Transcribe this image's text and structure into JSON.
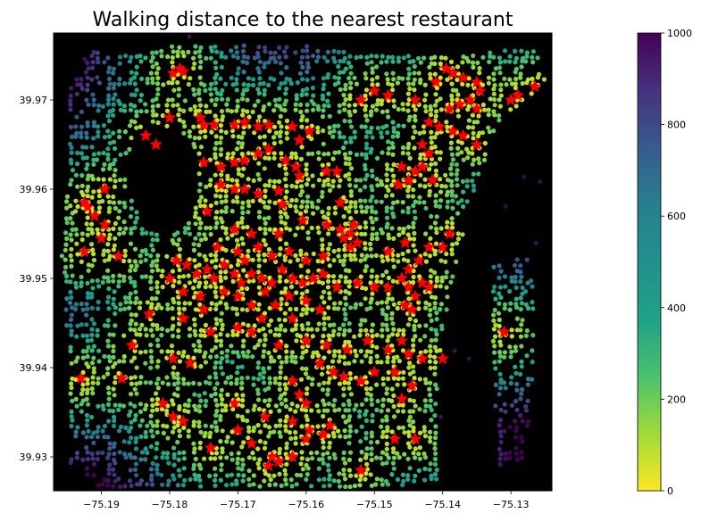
{
  "chart_data": {
    "type": "scatter",
    "title": "Walking distance to the nearest restaurant",
    "xlabel": "",
    "ylabel": "",
    "xlim": [
      -75.197,
      -75.124
    ],
    "ylim": [
      39.9262,
      39.9775
    ],
    "x_ticks": [
      -75.19,
      -75.18,
      -75.17,
      -75.16,
      -75.15,
      -75.14,
      -75.13
    ],
    "x_tick_labels": [
      "−75.19",
      "−75.18",
      "−75.17",
      "−75.16",
      "−75.15",
      "−75.14",
      "−75.13"
    ],
    "y_ticks": [
      39.93,
      39.94,
      39.95,
      39.96,
      39.97
    ],
    "y_tick_labels": [
      "39.93",
      "39.94",
      "39.95",
      "39.96",
      "39.97"
    ],
    "background": "#000000",
    "grid": false,
    "colormap": "viridis_r",
    "colorbar": {
      "range": [
        0,
        1000
      ],
      "ticks": [
        0,
        200,
        400,
        600,
        800,
        1000
      ],
      "tick_labels": [
        "0",
        "200",
        "400",
        "600",
        "800",
        "1000"
      ]
    },
    "series": [
      {
        "kind": "network_nodes",
        "description_of_values": "walking distance colored via colormap",
        "color_by": "distance"
      },
      {
        "kind": "restaurants",
        "marker": "star",
        "color": "#ff0000",
        "points": [
          [
            -75.1785,
            39.9735
          ],
          [
            -75.1795,
            39.973
          ],
          [
            -75.178,
            39.9732
          ],
          [
            -75.18,
            39.968
          ],
          [
            -75.1755,
            39.968
          ],
          [
            -75.175,
            39.9672
          ],
          [
            -75.1735,
            39.9672
          ],
          [
            -75.1705,
            39.9672
          ],
          [
            -75.169,
            39.9675
          ],
          [
            -75.167,
            39.967
          ],
          [
            -75.1655,
            39.9672
          ],
          [
            -75.162,
            39.967
          ],
          [
            -75.1595,
            39.9665
          ],
          [
            -75.161,
            39.9655
          ],
          [
            -75.1835,
            39.966
          ],
          [
            -75.182,
            39.965
          ],
          [
            -75.175,
            39.963
          ],
          [
            -75.1725,
            39.9625
          ],
          [
            -75.1705,
            39.963
          ],
          [
            -75.169,
            39.9632
          ],
          [
            -75.167,
            39.964
          ],
          [
            -75.1655,
            39.9645
          ],
          [
            -75.163,
            39.9632
          ],
          [
            -75.1615,
            39.9625
          ],
          [
            -75.161,
            39.9615
          ],
          [
            -75.157,
            39.962
          ],
          [
            -75.1555,
            39.962
          ],
          [
            -75.1725,
            39.9605
          ],
          [
            -75.1705,
            39.96
          ],
          [
            -75.169,
            39.96
          ],
          [
            -75.167,
            39.9595
          ],
          [
            -75.164,
            39.9598
          ],
          [
            -75.1635,
            39.9583
          ],
          [
            -75.155,
            39.9585
          ],
          [
            -75.1925,
            39.9585
          ],
          [
            -75.192,
            39.958
          ],
          [
            -75.191,
            39.957
          ],
          [
            -75.1895,
            39.96
          ],
          [
            -75.1895,
            39.956
          ],
          [
            -75.19,
            39.9545
          ],
          [
            -75.1925,
            39.953
          ],
          [
            -75.1875,
            39.9525
          ],
          [
            -75.1745,
            39.9575
          ],
          [
            -75.1705,
            39.9555
          ],
          [
            -75.168,
            39.955
          ],
          [
            -75.164,
            39.955
          ],
          [
            -75.1605,
            39.9565
          ],
          [
            -75.157,
            39.956
          ],
          [
            -75.155,
            39.9555
          ],
          [
            -75.1545,
            39.9545
          ],
          [
            -75.1535,
            39.955
          ],
          [
            -75.153,
            39.956
          ],
          [
            -75.1525,
            39.954
          ],
          [
            -75.1535,
            39.9535
          ],
          [
            -75.173,
            39.9535
          ],
          [
            -75.17,
            39.953
          ],
          [
            -75.169,
            39.952
          ],
          [
            -75.167,
            39.9535
          ],
          [
            -75.165,
            39.9525
          ],
          [
            -75.1625,
            39.953
          ],
          [
            -75.16,
            39.952
          ],
          [
            -75.1575,
            39.9525
          ],
          [
            -75.179,
            39.952
          ],
          [
            -75.1775,
            39.9515
          ],
          [
            -75.176,
            39.9505
          ],
          [
            -75.1745,
            39.951
          ],
          [
            -75.1735,
            39.95
          ],
          [
            -75.172,
            39.9515
          ],
          [
            -75.1705,
            39.9505
          ],
          [
            -75.1695,
            39.9495
          ],
          [
            -75.168,
            39.9505
          ],
          [
            -75.1665,
            39.95
          ],
          [
            -75.165,
            39.9495
          ],
          [
            -75.1635,
            39.951
          ],
          [
            -75.162,
            39.95
          ],
          [
            -75.1605,
            39.9495
          ],
          [
            -75.159,
            39.95
          ],
          [
            -75.1575,
            39.9505
          ],
          [
            -75.1555,
            39.949
          ],
          [
            -75.1525,
            39.9495
          ],
          [
            -75.18,
            39.95
          ],
          [
            -75.178,
            39.9485
          ],
          [
            -75.1755,
            39.948
          ],
          [
            -75.172,
            39.9485
          ],
          [
            -75.17,
            39.948
          ],
          [
            -75.168,
            39.947
          ],
          [
            -75.166,
            39.9485
          ],
          [
            -75.1645,
            39.947
          ],
          [
            -75.1625,
            39.948
          ],
          [
            -75.16,
            39.9475
          ],
          [
            -75.158,
            39.9465
          ],
          [
            -75.183,
            39.946
          ],
          [
            -75.178,
            39.9455
          ],
          [
            -75.175,
            39.9465
          ],
          [
            -75.1665,
            39.9455
          ],
          [
            -75.162,
            39.9455
          ],
          [
            -75.15,
            39.949
          ],
          [
            -75.148,
            39.949
          ],
          [
            -75.146,
            39.95
          ],
          [
            -75.145,
            39.949
          ],
          [
            -75.144,
            39.948
          ],
          [
            -75.143,
            39.9495
          ],
          [
            -75.142,
            39.949
          ],
          [
            -75.145,
            39.951
          ],
          [
            -75.1435,
            39.952
          ],
          [
            -75.142,
            39.9535
          ],
          [
            -75.1455,
            39.954
          ],
          [
            -75.14,
            39.9535
          ],
          [
            -75.139,
            39.955
          ],
          [
            -75.148,
            39.953
          ],
          [
            -75.1455,
            39.947
          ],
          [
            -75.1445,
            39.9465
          ],
          [
            -75.174,
            39.944
          ],
          [
            -75.17,
            39.9445
          ],
          [
            -75.168,
            39.944
          ],
          [
            -75.164,
            39.9425
          ],
          [
            -75.16,
            39.943
          ],
          [
            -75.157,
            39.9425
          ],
          [
            -75.154,
            39.942
          ],
          [
            -75.151,
            39.943
          ],
          [
            -75.148,
            39.942
          ],
          [
            -75.146,
            39.943
          ],
          [
            -75.145,
            39.9415
          ],
          [
            -75.143,
            39.941
          ],
          [
            -75.14,
            39.941
          ],
          [
            -75.1855,
            39.9425
          ],
          [
            -75.1795,
            39.941
          ],
          [
            -75.177,
            39.9405
          ],
          [
            -75.158,
            39.9405
          ],
          [
            -75.156,
            39.9395
          ],
          [
            -75.1545,
            39.939
          ],
          [
            -75.152,
            39.9385
          ],
          [
            -75.15,
            39.9395
          ],
          [
            -75.147,
            39.9395
          ],
          [
            -75.146,
            39.9365
          ],
          [
            -75.1445,
            39.938
          ],
          [
            -75.162,
            39.9385
          ],
          [
            -75.161,
            39.937
          ],
          [
            -75.16,
            39.936
          ],
          [
            -75.193,
            39.9388
          ],
          [
            -75.187,
            39.9388
          ],
          [
            -75.181,
            39.936
          ],
          [
            -75.1795,
            39.9345
          ],
          [
            -75.178,
            39.934
          ],
          [
            -75.1705,
            39.936
          ],
          [
            -75.17,
            39.933
          ],
          [
            -75.166,
            39.9345
          ],
          [
            -75.162,
            39.934
          ],
          [
            -75.1595,
            39.933
          ],
          [
            -75.1575,
            39.9325
          ],
          [
            -75.1565,
            39.9335
          ],
          [
            -75.16,
            39.932
          ],
          [
            -75.174,
            39.931
          ],
          [
            -75.168,
            39.9315
          ],
          [
            -75.165,
            39.93
          ],
          [
            -75.164,
            39.9295
          ],
          [
            -75.162,
            39.93
          ],
          [
            -75.1655,
            39.929
          ],
          [
            -75.152,
            39.9285
          ],
          [
            -75.147,
            39.932
          ],
          [
            -75.144,
            39.932
          ],
          [
            -75.152,
            39.97
          ],
          [
            -75.15,
            39.971
          ],
          [
            -75.148,
            39.9705
          ],
          [
            -75.144,
            39.97
          ],
          [
            -75.141,
            39.972
          ],
          [
            -75.1395,
            39.9735
          ],
          [
            -75.1385,
            39.973
          ],
          [
            -75.137,
            39.9725
          ],
          [
            -75.135,
            39.972
          ],
          [
            -75.1345,
            39.971
          ],
          [
            -75.136,
            39.97
          ],
          [
            -75.1375,
            39.9695
          ],
          [
            -75.135,
            39.969
          ],
          [
            -75.139,
            39.969
          ],
          [
            -75.13,
            39.97
          ],
          [
            -75.129,
            39.9705
          ],
          [
            -75.1265,
            39.9715
          ],
          [
            -75.142,
            39.9675
          ],
          [
            -75.1405,
            39.967
          ],
          [
            -75.1385,
            39.9665
          ],
          [
            -75.137,
            39.966
          ],
          [
            -75.143,
            39.965
          ],
          [
            -75.142,
            39.964
          ],
          [
            -75.135,
            39.965
          ],
          [
            -75.146,
            39.9625
          ],
          [
            -75.144,
            39.962
          ],
          [
            -75.143,
            39.9625
          ],
          [
            -75.1415,
            39.961
          ],
          [
            -75.145,
            39.961
          ],
          [
            -75.1465,
            39.9605
          ],
          [
            -75.131,
            39.944
          ]
        ]
      }
    ]
  }
}
